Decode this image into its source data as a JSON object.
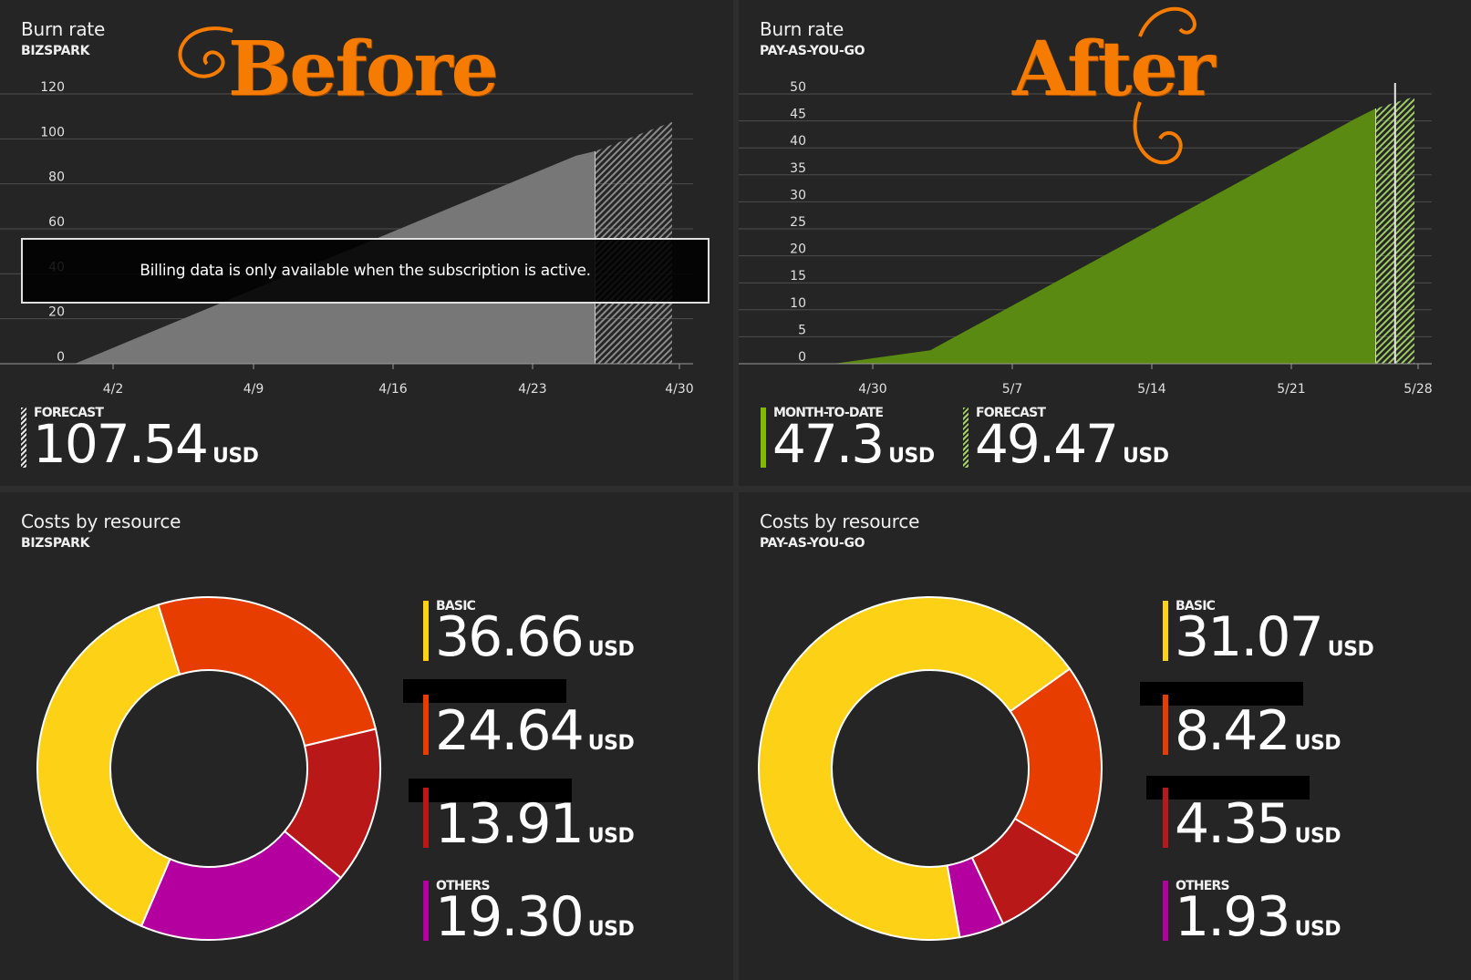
{
  "colors": {
    "gray_area": "#777777",
    "green_area": "#5a8a12",
    "basic": "#fcd116",
    "second": "#e83d00",
    "third": "#b91818",
    "others": "#b4009e",
    "accent_green": "#7fba00"
  },
  "panels": {
    "before_burn": {
      "title": "Burn rate",
      "subtitle": "BIZSPARK",
      "decoration": "Before",
      "notice": "Billing data is only available when the subscription is active.",
      "forecast": {
        "label": "FORECAST",
        "value": "107.54",
        "unit": "USD"
      }
    },
    "after_burn": {
      "title": "Burn rate",
      "subtitle": "PAY-AS-YOU-GO",
      "decoration": "After",
      "month_to_date": {
        "label": "MONTH-TO-DATE",
        "value": "47.3",
        "unit": "USD"
      },
      "forecast": {
        "label": "FORECAST",
        "value": "49.47",
        "unit": "USD"
      }
    },
    "before_costs": {
      "title": "Costs by resource",
      "subtitle": "BIZSPARK",
      "items": [
        {
          "label": "BASIC",
          "value": "36.66",
          "unit": "USD"
        },
        {
          "label": "",
          "value": "24.64",
          "unit": "USD"
        },
        {
          "label": "",
          "value": "13.91",
          "unit": "USD"
        },
        {
          "label": "OTHERS",
          "value": "19.30",
          "unit": "USD"
        }
      ]
    },
    "after_costs": {
      "title": "Costs by resource",
      "subtitle": "PAY-AS-YOU-GO",
      "items": [
        {
          "label": "BASIC",
          "value": "31.07",
          "unit": "USD"
        },
        {
          "label": "",
          "value": "8.42",
          "unit": "USD"
        },
        {
          "label": "",
          "value": "4.35",
          "unit": "USD"
        },
        {
          "label": "OTHERS",
          "value": "1.93",
          "unit": "USD"
        }
      ]
    }
  },
  "chart_data": [
    {
      "type": "area",
      "title": "Burn rate",
      "subtitle": "BIZSPARK",
      "ylim": [
        0,
        120
      ],
      "yticks": [
        0,
        20,
        40,
        60,
        80,
        100,
        120
      ],
      "xtick_labels": [
        "4/2",
        "4/9",
        "4/16",
        "4/23",
        "4/30"
      ],
      "grid": true,
      "actual": {
        "day": [
          1,
          27,
          28
        ],
        "y": [
          0,
          92.5,
          94.5
        ]
      },
      "forecast": {
        "day": [
          28,
          32
        ],
        "y": [
          94.5,
          107.54
        ]
      },
      "forecast_total": 107.54
    },
    {
      "type": "area",
      "title": "Burn rate",
      "subtitle": "PAY-AS-YOU-GO",
      "ylim": [
        0,
        50
      ],
      "yticks": [
        0,
        5,
        10,
        15,
        20,
        25,
        30,
        35,
        40,
        45,
        50
      ],
      "xtick_labels": [
        "4/30",
        "5/7",
        "5/14",
        "5/21",
        "5/28"
      ],
      "grid": true,
      "actual": {
        "day": [
          0,
          5,
          27,
          28
        ],
        "y": [
          0,
          2.5,
          45.5,
          47.3
        ]
      },
      "forecast": {
        "day": [
          28,
          30
        ],
        "y": [
          47.3,
          49.47
        ]
      },
      "today_marker_day": 29,
      "month_to_date": 47.3,
      "forecast_total": 49.47
    },
    {
      "type": "pie",
      "title": "Costs by resource",
      "subtitle": "BIZSPARK",
      "labels": [
        "BASIC",
        "",
        "",
        "OTHERS"
      ],
      "values": [
        36.66,
        24.64,
        13.91,
        19.3
      ]
    },
    {
      "type": "pie",
      "title": "Costs by resource",
      "subtitle": "PAY-AS-YOU-GO",
      "labels": [
        "BASIC",
        "",
        "",
        "OTHERS"
      ],
      "values": [
        31.07,
        8.42,
        4.35,
        1.93
      ]
    }
  ]
}
